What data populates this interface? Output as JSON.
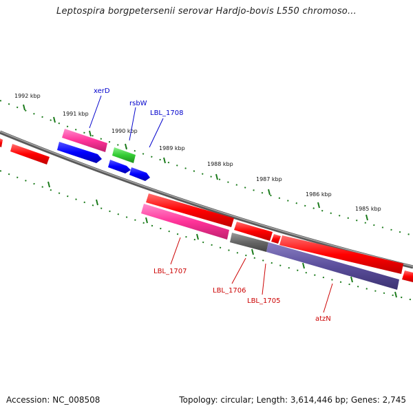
{
  "title": "Leptospira borgpetersenii serovar Hardjo-bovis L550 chromoso...",
  "footer": {
    "accession": "Accession: NC_008508",
    "summary": "Topology: circular; Length: 3,614,446 bp; Genes: 2,745"
  },
  "scale": {
    "ticks": [
      {
        "label": "1992 kbp"
      },
      {
        "label": "1991 kbp"
      },
      {
        "label": "1990 kbp"
      },
      {
        "label": "1989 kbp"
      },
      {
        "label": "1988 kbp"
      },
      {
        "label": "1987 kbp"
      },
      {
        "label": "1986 kbp"
      },
      {
        "label": "1985 kbp"
      }
    ]
  },
  "colors": {
    "cds": "#ff0000",
    "rna": "#ff3399",
    "regulator": "#0000ff",
    "other": "#33cc33",
    "pseudo": "#666666",
    "misc": "#5b4f9c",
    "backbone": "#808080",
    "tick": "#1a7a1a",
    "label_top": "#0000cc",
    "label_bottom": "#cc0000"
  },
  "labels": {
    "top": [
      {
        "name": "xerD"
      },
      {
        "name": "rsbW"
      },
      {
        "name": "LBL_1708"
      }
    ],
    "bottom": [
      {
        "name": "LBL_1707"
      },
      {
        "name": "LBL_1706"
      },
      {
        "name": "LBL_1705"
      },
      {
        "name": "atzN"
      }
    ]
  }
}
